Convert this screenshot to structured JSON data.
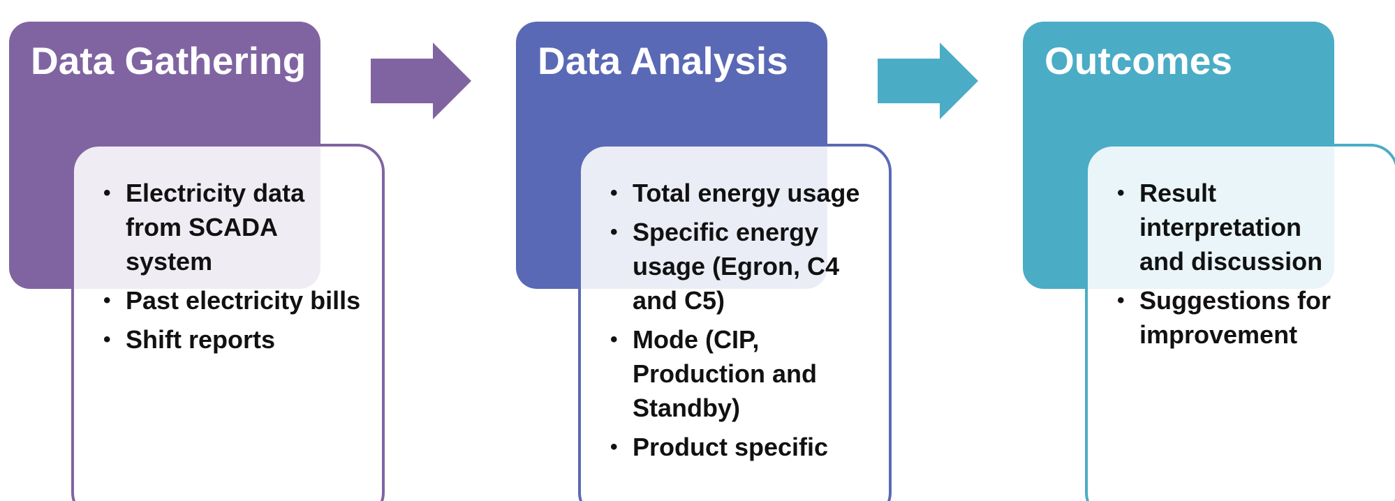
{
  "stages": [
    {
      "title": "Data Gathering",
      "items": [
        "Electricity data from SCADA system",
        "Past electricity bills",
        "Shift reports"
      ]
    },
    {
      "title": "Data Analysis",
      "items": [
        "Total energy usage",
        "Specific energy usage (Egron, C4 and C5)",
        "Mode (CIP, Production and Standby)",
        "Product specific"
      ]
    },
    {
      "title": "Outcomes",
      "items": [
        "Result interpretation and discussion",
        "Suggestions for improvement"
      ]
    }
  ]
}
